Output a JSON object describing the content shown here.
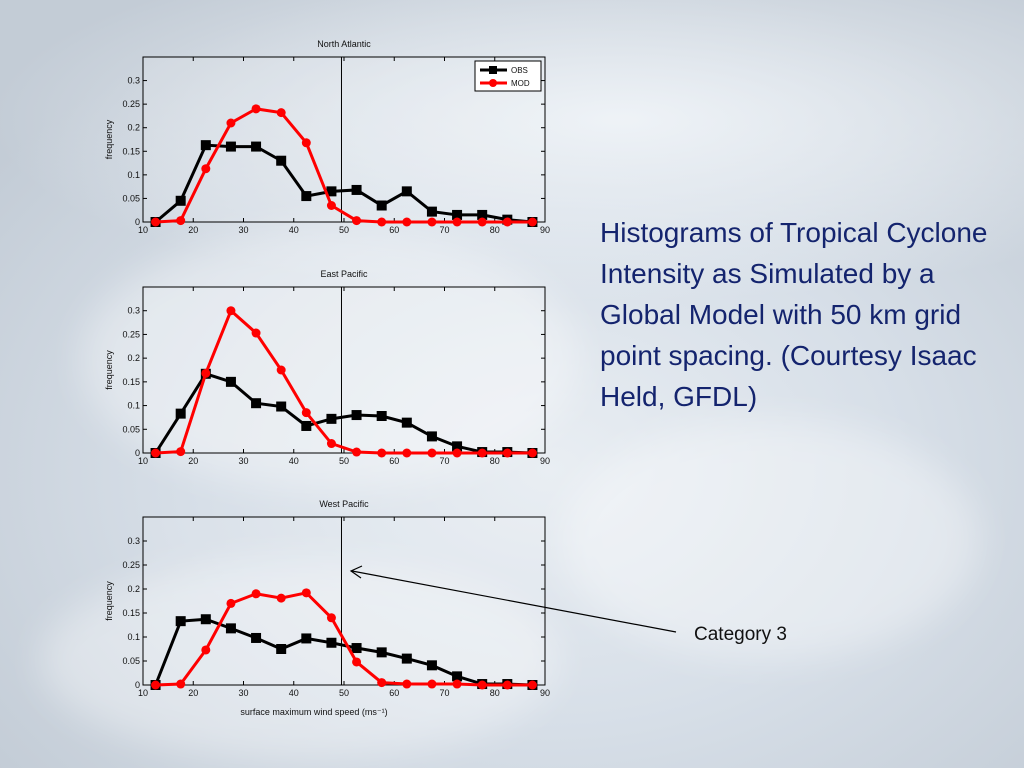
{
  "slide": {
    "caption": "Histograms of Tropical Cyclone Intensity as Simulated by a Global Model with 50 km grid point spacing. (Courtesy Isaac Held, GFDL)",
    "annotation_label": "Category 3"
  },
  "colors": {
    "obs": "#000000",
    "mod": "#ff0000",
    "caption": "#14246e"
  },
  "chart_data": [
    {
      "type": "line",
      "title": "North Atlantic",
      "ylabel": "frequency",
      "xlabel": "",
      "xlim": [
        10,
        90
      ],
      "ylim": [
        0,
        0.35
      ],
      "xticks": [
        10,
        20,
        30,
        40,
        50,
        60,
        70,
        80,
        90
      ],
      "yticks": [
        0,
        0.05,
        0.1,
        0.15,
        0.2,
        0.25,
        0.3
      ],
      "ytick_labels": [
        "0",
        "0.05",
        "0.1",
        "0.15",
        "0.2",
        "0.25",
        "0.3"
      ],
      "legend": [
        "OBS",
        "MOD"
      ],
      "legend_position": "top-right",
      "vline_x": 49.5,
      "x": [
        12.5,
        17.5,
        22.5,
        27.5,
        32.5,
        37.5,
        42.5,
        47.5,
        52.5,
        57.5,
        62.5,
        67.5,
        72.5,
        77.5,
        82.5,
        87.5
      ],
      "series": [
        {
          "name": "OBS",
          "values": [
            0,
            0.045,
            0.163,
            0.16,
            0.16,
            0.13,
            0.055,
            0.065,
            0.068,
            0.035,
            0.065,
            0.022,
            0.015,
            0.015,
            0.005,
            0
          ]
        },
        {
          "name": "MOD",
          "values": [
            0,
            0.003,
            0.113,
            0.21,
            0.24,
            0.232,
            0.168,
            0.035,
            0.003,
            0,
            0,
            0,
            0,
            0,
            0,
            0
          ]
        }
      ]
    },
    {
      "type": "line",
      "title": "East Pacific",
      "ylabel": "frequency",
      "xlabel": "",
      "xlim": [
        10,
        90
      ],
      "ylim": [
        0,
        0.35
      ],
      "xticks": [
        10,
        20,
        30,
        40,
        50,
        60,
        70,
        80,
        90
      ],
      "yticks": [
        0,
        0.05,
        0.1,
        0.15,
        0.2,
        0.25,
        0.3
      ],
      "ytick_labels": [
        "0",
        "0.05",
        "0.1",
        "0.15",
        "0.2",
        "0.25",
        "0.3"
      ],
      "vline_x": 49.5,
      "x": [
        12.5,
        17.5,
        22.5,
        27.5,
        32.5,
        37.5,
        42.5,
        47.5,
        52.5,
        57.5,
        62.5,
        67.5,
        72.5,
        77.5,
        82.5,
        87.5
      ],
      "series": [
        {
          "name": "OBS",
          "values": [
            0,
            0.083,
            0.167,
            0.15,
            0.105,
            0.098,
            0.057,
            0.072,
            0.08,
            0.078,
            0.064,
            0.035,
            0.014,
            0.002,
            0.002,
            0
          ]
        },
        {
          "name": "MOD",
          "values": [
            0,
            0.003,
            0.168,
            0.3,
            0.253,
            0.175,
            0.085,
            0.02,
            0.002,
            0,
            0,
            0,
            0,
            0,
            0,
            0
          ]
        }
      ]
    },
    {
      "type": "line",
      "title": "West Pacific",
      "ylabel": "frequency",
      "xlabel": "surface maximum wind speed (ms⁻¹)",
      "xlim": [
        10,
        90
      ],
      "ylim": [
        0,
        0.35
      ],
      "xticks": [
        10,
        20,
        30,
        40,
        50,
        60,
        70,
        80,
        90
      ],
      "yticks": [
        0,
        0.05,
        0.1,
        0.15,
        0.2,
        0.25,
        0.3
      ],
      "ytick_labels": [
        "0",
        "0.05",
        "0.1",
        "0.15",
        "0.2",
        "0.25",
        "0.3"
      ],
      "vline_x": 49.5,
      "x": [
        12.5,
        17.5,
        22.5,
        27.5,
        32.5,
        37.5,
        42.5,
        47.5,
        52.5,
        57.5,
        62.5,
        67.5,
        72.5,
        77.5,
        82.5,
        87.5
      ],
      "series": [
        {
          "name": "OBS",
          "values": [
            0,
            0.133,
            0.137,
            0.118,
            0.098,
            0.075,
            0.097,
            0.088,
            0.077,
            0.068,
            0.055,
            0.041,
            0.018,
            0.002,
            0.002,
            0
          ]
        },
        {
          "name": "MOD",
          "values": [
            0,
            0.002,
            0.073,
            0.17,
            0.19,
            0.181,
            0.192,
            0.14,
            0.048,
            0.005,
            0.002,
            0.002,
            0.002,
            0,
            0,
            0
          ]
        }
      ]
    }
  ]
}
